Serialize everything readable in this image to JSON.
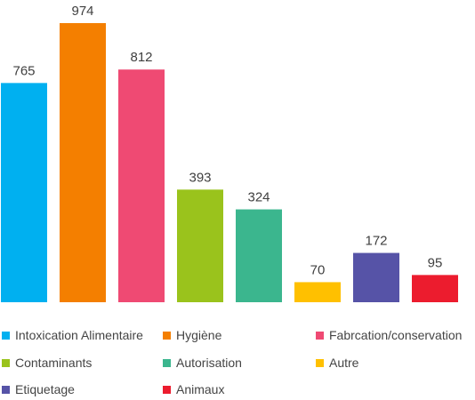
{
  "chart_data": {
    "type": "bar",
    "categories": [
      "Intoxication Alimentaire",
      "Hygiène",
      "Fabrcation/conservation",
      "Contaminants",
      "Autorisation",
      "Autre",
      "Etiquetage",
      "Animaux"
    ],
    "values": [
      765,
      974,
      812,
      393,
      324,
      70,
      172,
      95
    ],
    "colors": [
      "#00b0f0",
      "#f47f00",
      "#ef4a73",
      "#9ac31c",
      "#3bb68e",
      "#ffc000",
      "#5653a7",
      "#ec1c2e"
    ],
    "data_labels": [
      "765",
      "974",
      "812",
      "393",
      "324",
      "70",
      "172",
      "95"
    ],
    "ylim": [
      0,
      974
    ],
    "grid": false,
    "legend_position": "bottom",
    "title": "",
    "xlabel": "",
    "ylabel": ""
  }
}
